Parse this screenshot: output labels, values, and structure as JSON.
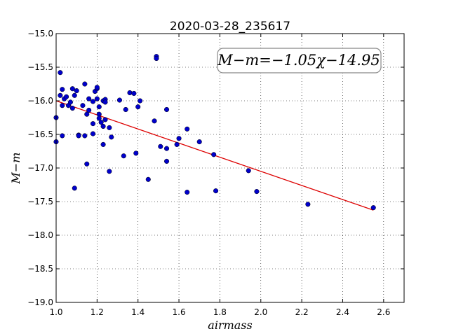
{
  "chart_data": {
    "type": "scatter",
    "title": "2020-03-28_235617",
    "xlabel": "airmass",
    "ylabel": "M−m",
    "xlim": [
      1.0,
      2.7
    ],
    "ylim": [
      -19.0,
      -15.0
    ],
    "xticks": [
      1.0,
      1.2,
      1.4,
      1.6,
      1.8,
      2.0,
      2.2,
      2.4,
      2.6
    ],
    "yticks": [
      -15.0,
      -15.5,
      -16.0,
      -16.5,
      -17.0,
      -17.5,
      -18.0,
      -18.5,
      -19.0
    ],
    "xtick_labels": [
      "1.0",
      "1.2",
      "1.4",
      "1.6",
      "1.8",
      "2.0",
      "2.2",
      "2.4",
      "2.6"
    ],
    "ytick_labels": [
      "−15.0",
      "−15.5",
      "−16.0",
      "−16.5",
      "−17.0",
      "−17.5",
      "−18.0",
      "−18.5",
      "−19.0"
    ],
    "grid": true,
    "annotation": {
      "text": "M−m=−1.05χ−14.95",
      "placement": "upper-right"
    },
    "fit_line": {
      "slope": -1.05,
      "intercept": -14.95,
      "x_range": [
        1.0,
        2.55
      ],
      "color": "#dd0000"
    },
    "series": [
      {
        "color": "#0000cc",
        "x": [
          1.0,
          1.0,
          1.02,
          1.02,
          1.03,
          1.03,
          1.03,
          1.04,
          1.05,
          1.06,
          1.07,
          1.08,
          1.08,
          1.09,
          1.09,
          1.1,
          1.11,
          1.11,
          1.13,
          1.14,
          1.14,
          1.15,
          1.15,
          1.16,
          1.16,
          1.18,
          1.18,
          1.18,
          1.19,
          1.2,
          1.2,
          1.2,
          1.21,
          1.21,
          1.21,
          1.22,
          1.23,
          1.23,
          1.23,
          1.24,
          1.24,
          1.24,
          1.26,
          1.26,
          1.27,
          1.31,
          1.33,
          1.34,
          1.36,
          1.38,
          1.39,
          1.4,
          1.41,
          1.45,
          1.48,
          1.49,
          1.49,
          1.51,
          1.54,
          1.54,
          1.54,
          1.59,
          1.6,
          1.64,
          1.64,
          1.7,
          1.77,
          1.78,
          1.94,
          1.98,
          2.23,
          2.55
        ],
        "y": [
          -16.25,
          -16.61,
          -15.58,
          -15.92,
          -16.07,
          -16.52,
          -15.83,
          -15.97,
          -15.94,
          -16.07,
          -16.02,
          -16.11,
          -15.82,
          -15.92,
          -17.3,
          -15.85,
          -16.51,
          -16.52,
          -16.07,
          -16.52,
          -15.75,
          -16.2,
          -16.94,
          -15.97,
          -16.14,
          -16.01,
          -16.34,
          -16.49,
          -15.86,
          -15.82,
          -15.8,
          -15.97,
          -16.09,
          -16.2,
          -16.26,
          -16.32,
          -16.0,
          -16.38,
          -16.65,
          -16.28,
          -15.98,
          -16.02,
          -16.4,
          -17.05,
          -16.54,
          -15.99,
          -16.82,
          -16.13,
          -15.88,
          -15.89,
          -16.78,
          -16.09,
          -16.0,
          -17.17,
          -16.3,
          -15.34,
          -15.37,
          -16.68,
          -16.13,
          -16.71,
          -16.9,
          -16.65,
          -16.56,
          -16.42,
          -17.36,
          -16.61,
          -16.8,
          -17.34,
          -17.04,
          -17.35,
          -17.54,
          -17.59
        ]
      }
    ]
  }
}
